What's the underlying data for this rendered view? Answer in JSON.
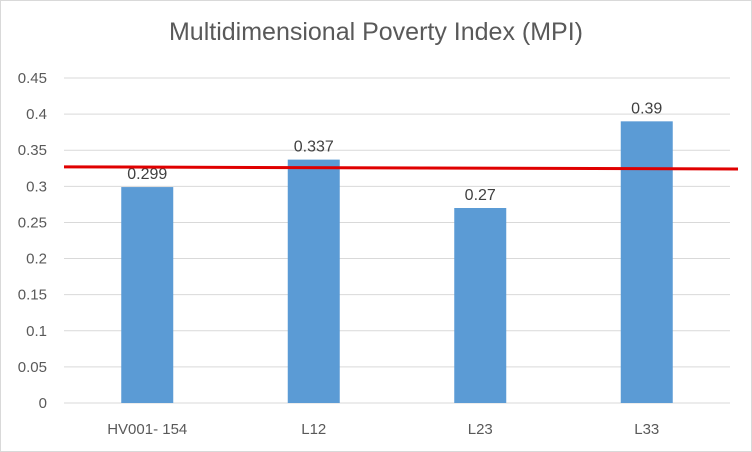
{
  "chart_data": {
    "type": "bar",
    "title": "Multidimensional Poverty Index (MPI)",
    "categories": [
      "HV001- 154",
      "L12",
      "L23",
      "L33"
    ],
    "values": [
      0.299,
      0.337,
      0.27,
      0.39
    ],
    "data_labels": [
      "0.299",
      "0.337",
      "0.27",
      "0.39"
    ],
    "ylim": [
      0,
      0.45
    ],
    "y_ticks": [
      0,
      0.05,
      0.1,
      0.15,
      0.2,
      0.25,
      0.3,
      0.35,
      0.4,
      0.45
    ],
    "y_tick_labels": [
      "0",
      "0.05",
      "0.1",
      "0.15",
      "0.2",
      "0.25",
      "0.3",
      "0.35",
      "0.4",
      "0.45"
    ],
    "reference_line": {
      "start_value": 0.327,
      "end_value": 0.324,
      "color": "#e00000"
    },
    "bar_color": "#5b9bd5",
    "grid": true,
    "legend": "none"
  }
}
